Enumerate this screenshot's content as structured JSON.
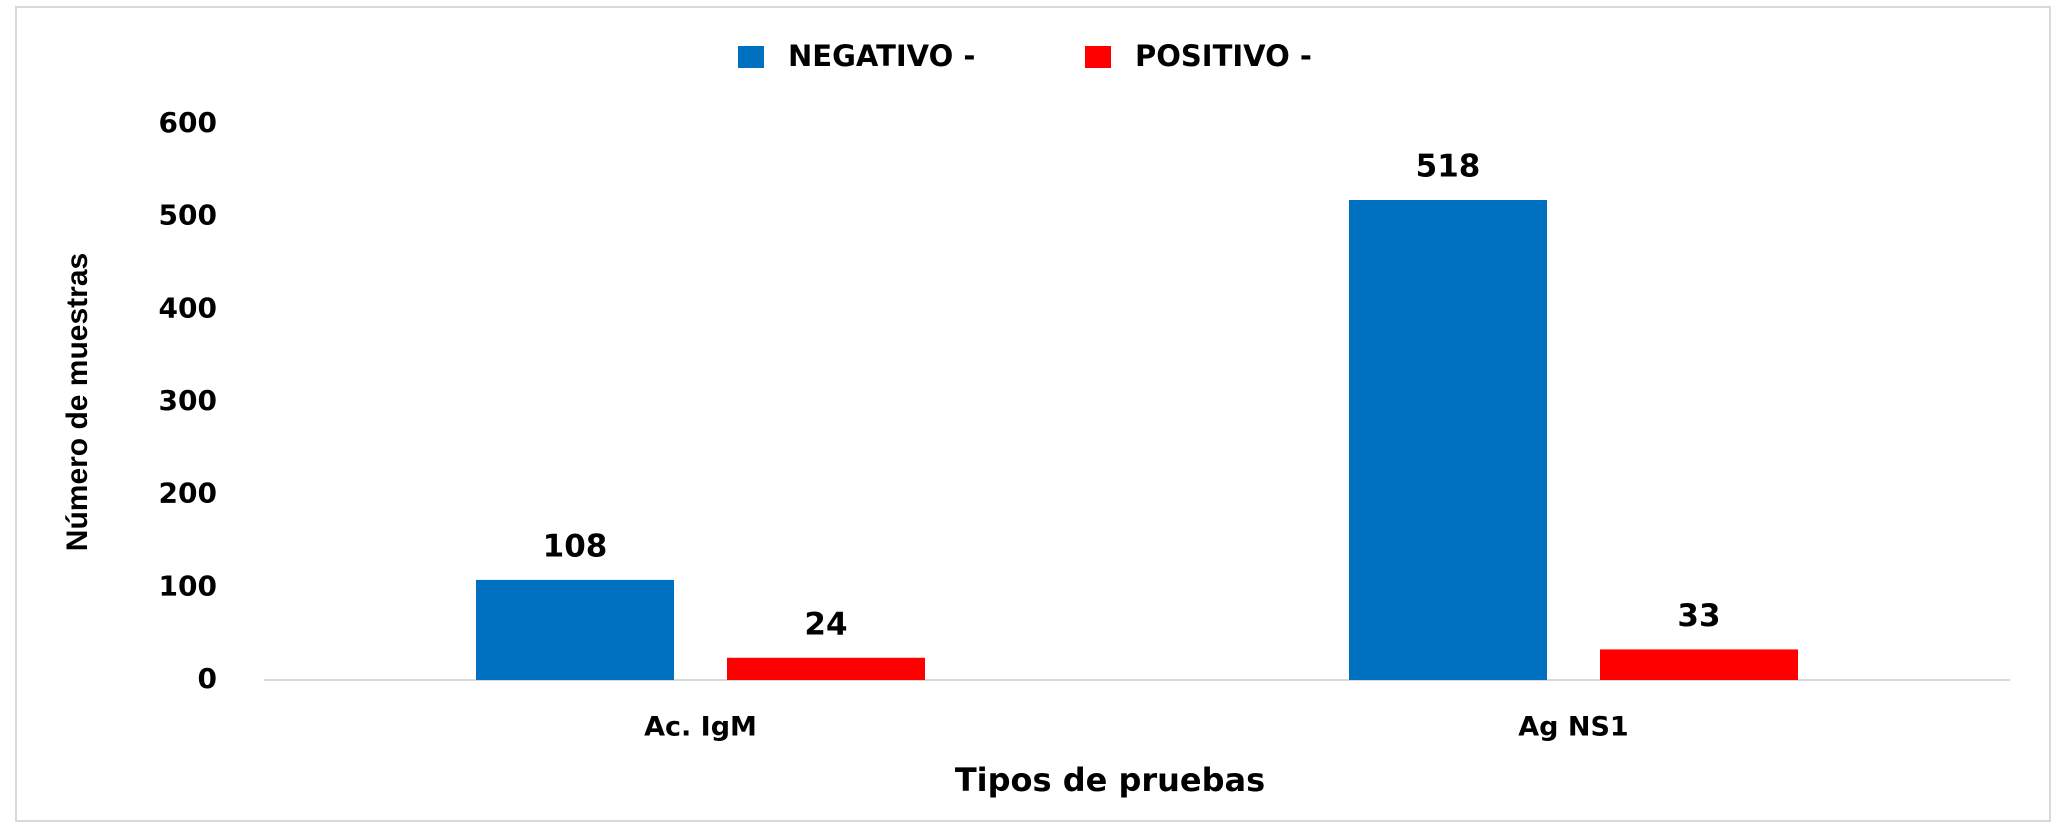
{
  "chart_data": {
    "type": "bar",
    "categories": [
      "Ac. IgM",
      "Ag NS1"
    ],
    "series": [
      {
        "name": "NEGATIVO -",
        "color": "#0070c0",
        "values": [
          108,
          518
        ]
      },
      {
        "name": "POSITIVO -",
        "color": "#ff0000",
        "values": [
          24,
          33
        ]
      }
    ],
    "ylim": [
      0,
      600
    ],
    "yticks": [
      0,
      100,
      200,
      300,
      400,
      500,
      600
    ],
    "xlabel": "Tipos de pruebas",
    "ylabel": "Número de muestras",
    "grid": false,
    "legend": "top"
  }
}
